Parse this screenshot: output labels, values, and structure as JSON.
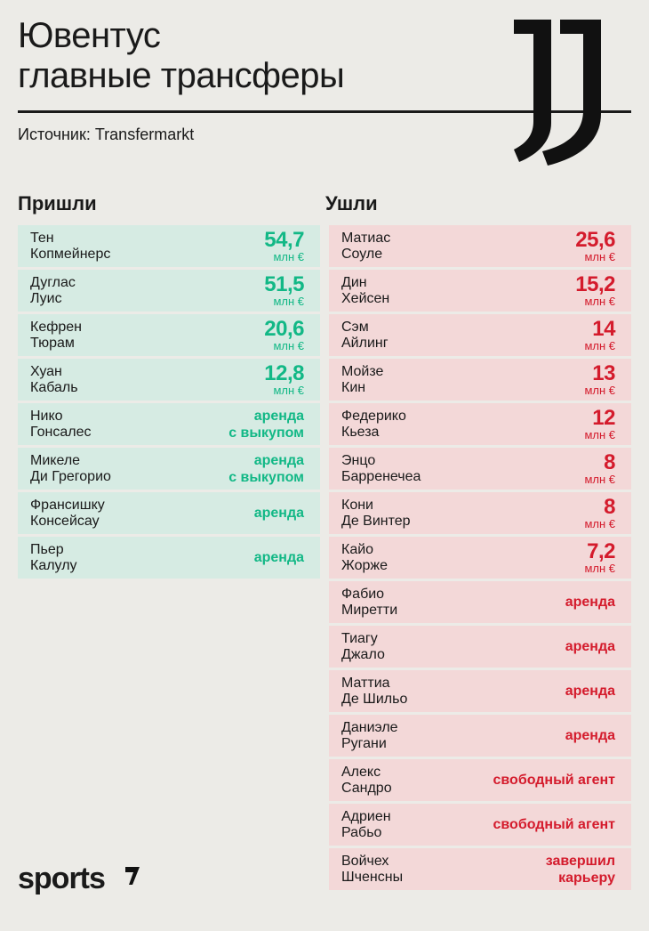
{
  "header": {
    "title_line1": "Ювентус",
    "title_line2": "главные трансферы",
    "source": "Источник: Transfermarkt"
  },
  "columns": {
    "in_label": "Пришли",
    "out_label": "Ушли"
  },
  "arrivals": [
    {
      "first": "Тен",
      "last": "Копмейнерс",
      "value": "54,7",
      "unit": "млн €",
      "note": ""
    },
    {
      "first": "Дуглас",
      "last": "Луис",
      "value": "51,5",
      "unit": "млн €",
      "note": ""
    },
    {
      "first": "Кефрен",
      "last": "Тюрам",
      "value": "20,6",
      "unit": "млн €",
      "note": ""
    },
    {
      "first": "Хуан",
      "last": "Кабаль",
      "value": "12,8",
      "unit": "млн €",
      "note": ""
    },
    {
      "first": "Нико",
      "last": "Гонсалес",
      "value": "",
      "unit": "",
      "note": "аренда",
      "note2": "с выкупом"
    },
    {
      "first": "Микеле",
      "last": "Ди Грегорио",
      "value": "",
      "unit": "",
      "note": "аренда",
      "note2": "с выкупом"
    },
    {
      "first": "Франсишку",
      "last": "Консейсау",
      "value": "",
      "unit": "",
      "note": "аренда",
      "note2": ""
    },
    {
      "first": "Пьер",
      "last": "Калулу",
      "value": "",
      "unit": "",
      "note": "аренда",
      "note2": ""
    }
  ],
  "departures": [
    {
      "first": "Матиас",
      "last": "Соуле",
      "value": "25,6",
      "unit": "млн €",
      "note": ""
    },
    {
      "first": "Дин",
      "last": "Хейсен",
      "value": "15,2",
      "unit": "млн €",
      "note": ""
    },
    {
      "first": "Сэм",
      "last": "Айлинг",
      "value": "14",
      "unit": "млн €",
      "note": ""
    },
    {
      "first": "Мойзе",
      "last": "Кин",
      "value": "13",
      "unit": "млн €",
      "note": ""
    },
    {
      "first": "Федерико",
      "last": "Кьеза",
      "value": "12",
      "unit": "млн €",
      "note": ""
    },
    {
      "first": "Энцо",
      "last": "Барренечеа",
      "value": "8",
      "unit": "млн €",
      "note": ""
    },
    {
      "first": "Кони",
      "last": "Де Винтер",
      "value": "8",
      "unit": "млн €",
      "note": ""
    },
    {
      "first": "Кайо",
      "last": "Жорже",
      "value": "7,2",
      "unit": "млн €",
      "note": ""
    },
    {
      "first": "Фабио",
      "last": "Миретти",
      "value": "",
      "unit": "",
      "note": "аренда",
      "note2": ""
    },
    {
      "first": "Тиагу",
      "last": "Джало",
      "value": "",
      "unit": "",
      "note": "аренда",
      "note2": ""
    },
    {
      "first": "Маттиа",
      "last": "Де Шильо",
      "value": "",
      "unit": "",
      "note": "аренда",
      "note2": ""
    },
    {
      "first": "Даниэле",
      "last": "Ругани",
      "value": "",
      "unit": "",
      "note": "аренда",
      "note2": ""
    },
    {
      "first": "Алекс",
      "last": "Сандро",
      "value": "",
      "unit": "",
      "note": "свободный агент",
      "note2": ""
    },
    {
      "first": "Адриен",
      "last": "Рабьо",
      "value": "",
      "unit": "",
      "note": "свободный агент",
      "note2": ""
    },
    {
      "first": "Войчех",
      "last": "Шченсны",
      "value": "",
      "unit": "",
      "note": "завершил",
      "note2": "карьеру"
    }
  ],
  "footer": {
    "brand": "sports"
  },
  "icons": {
    "club_logo": "juventus-logo-icon",
    "brand_mark": "sports-mark-icon"
  },
  "colors": {
    "in_accent": "#12b886",
    "out_accent": "#d41b2c",
    "in_bg": "#d6ebe3",
    "out_bg": "#f3d8d8"
  }
}
